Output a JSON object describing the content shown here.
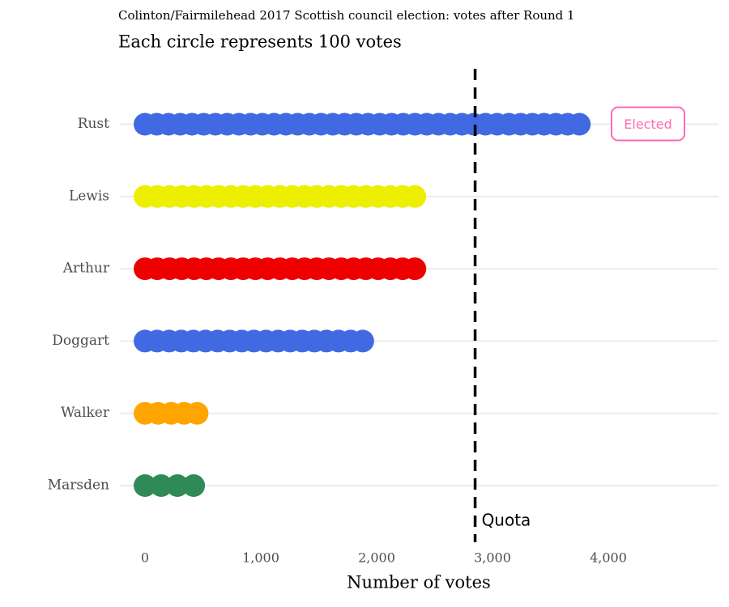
{
  "chart_data": {
    "type": "dot",
    "title": "Colinton/Fairmilehead 2017 Scottish council election: votes after Round 1",
    "subtitle": "Each circle represents 100 votes",
    "x_label": "Number of votes",
    "categories": [
      "Rust",
      "Lewis",
      "Arthur",
      "Doggart",
      "Walker",
      "Marsden"
    ],
    "values": [
      3750,
      2330,
      2330,
      1880,
      450,
      420
    ],
    "colors": [
      "#4169e1",
      "#eeee00",
      "#ee0000",
      "#4169e1",
      "#ffa500",
      "#2e8b57"
    ],
    "votes_per_circle": 100,
    "xlim": [
      -217,
      4951
    ],
    "xticks": [
      0,
      {
        "value": 1000,
        "label": "1,000"
      },
      {
        "value": 2000,
        "label": "2,000"
      },
      {
        "value": 3000,
        "label": "3,000"
      },
      {
        "value": 4000,
        "label": "4,000"
      }
    ],
    "quota": {
      "value": 2850,
      "label": "Quota"
    },
    "annotations": [
      {
        "text": "Elected",
        "candidate": "Rust",
        "color": "#ff69b4"
      }
    ],
    "grid": true
  }
}
